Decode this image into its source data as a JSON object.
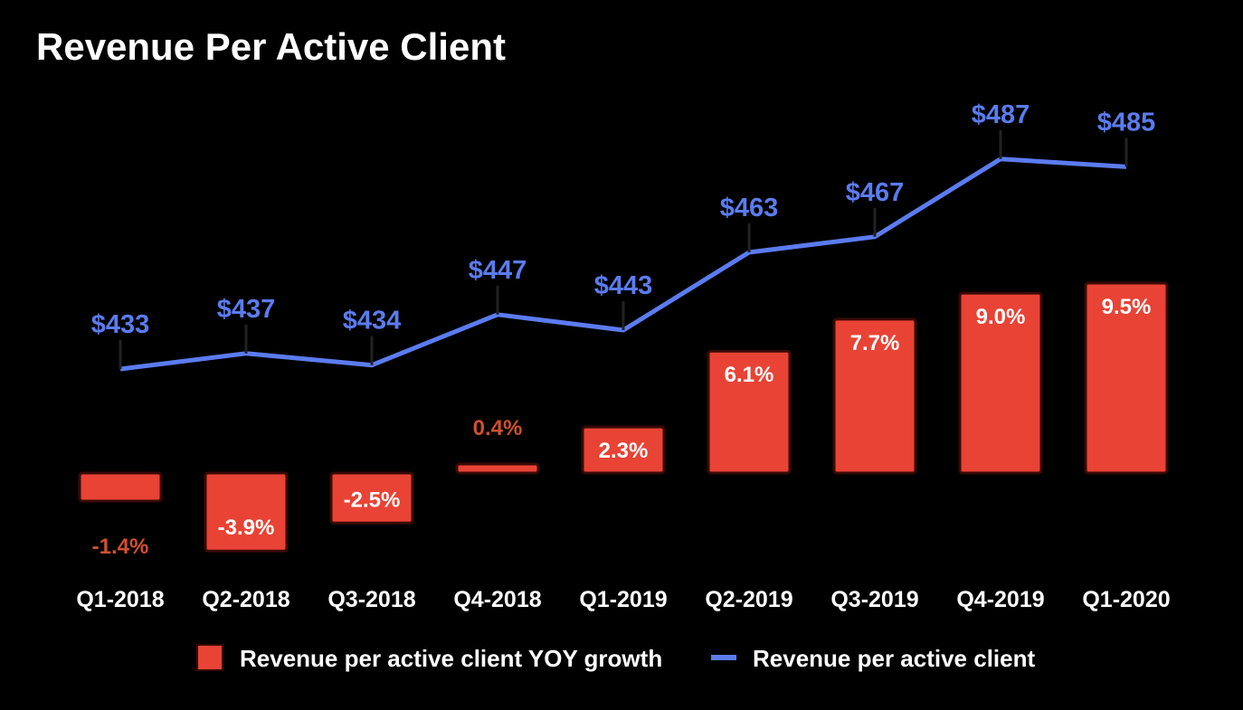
{
  "chart_data": {
    "type": "bar+line",
    "title": "Revenue Per Active Client",
    "categories": [
      "Q1-2018",
      "Q2-2018",
      "Q3-2018",
      "Q4-2018",
      "Q1-2019",
      "Q2-2019",
      "Q3-2019",
      "Q4-2019",
      "Q1-2020"
    ],
    "series": [
      {
        "name": "Revenue per active client YOY growth",
        "type": "bar",
        "unit": "%",
        "color": "#e84335",
        "values": [
          -1.4,
          -3.9,
          -2.5,
          0.4,
          2.3,
          6.1,
          7.7,
          9.0,
          9.5
        ],
        "labels": [
          "-1.4%",
          "-3.9%",
          "-2.5%",
          "0.4%",
          "2.3%",
          "6.1%",
          "7.7%",
          "9.0%",
          "9.5%"
        ]
      },
      {
        "name": "Revenue per active client",
        "type": "line",
        "unit": "$",
        "color": "#5b7cf0",
        "values": [
          433,
          437,
          434,
          447,
          443,
          463,
          467,
          487,
          485
        ],
        "labels": [
          "$433",
          "$437",
          "$434",
          "$447",
          "$443",
          "$463",
          "$467",
          "$487",
          "$485"
        ]
      }
    ],
    "legend": "bottom",
    "grid": false,
    "outside_label_color": "#d0502f"
  }
}
